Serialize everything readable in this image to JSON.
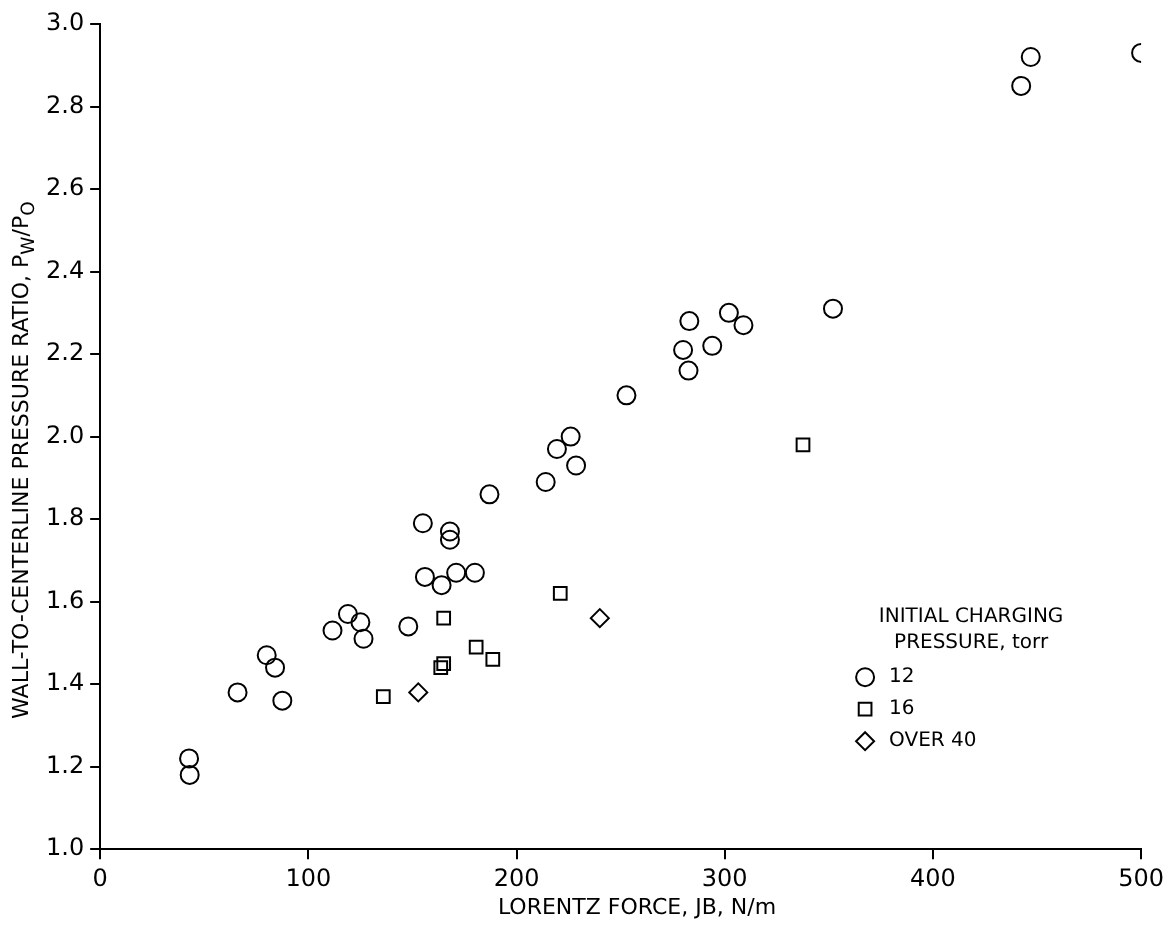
{
  "chart_data": {
    "type": "scatter",
    "xlabel": "LORENTZ FORCE, JB, N/m",
    "ylabel": "WALL-TO-CENTERLINE PRESSURE RATIO, P$_{W}$/P$_{O}$",
    "legend_title": "INITIAL CHARGING PRESSURE, torr",
    "legend": "bottom right",
    "grid": false,
    "xlim": [
      0,
      500
    ],
    "xticks": [
      0,
      100,
      200,
      300,
      400,
      500
    ],
    "ylim": [
      1,
      3
    ],
    "yticks": [
      {
        "value": 1,
        "label": "1.0"
      },
      1.2,
      1.4,
      1.6,
      1.8,
      {
        "value": 2,
        "label": "2.0"
      },
      2.2,
      2.4,
      2.6,
      2.8,
      {
        "value": 3,
        "label": "3.0"
      }
    ],
    "series": [
      {
        "name": "12",
        "color": "#000000",
        "marker": "circle",
        "x": [
          42.7,
          43,
          66,
          80,
          84,
          87.5,
          111.6,
          119,
          125,
          126.5,
          148,
          155,
          156,
          164,
          168,
          168,
          171,
          180,
          187,
          214,
          219.4,
          226,
          228.6,
          252.8,
          280,
          282.6,
          283,
          294,
          302,
          309,
          352,
          442.4,
          447,
          500
        ],
        "values": [
          1.22,
          1.18,
          1.38,
          1.47,
          1.44,
          1.36,
          1.53,
          1.57,
          1.55,
          1.51,
          1.54,
          1.79,
          1.66,
          1.64,
          1.77,
          1.75,
          1.67,
          1.67,
          1.86,
          1.89,
          1.97,
          2.0,
          1.93,
          2.1,
          2.21,
          2.16,
          2.28,
          2.22,
          2.3,
          2.27,
          2.31,
          2.85,
          2.92,
          2.93
        ]
      },
      {
        "name": "16",
        "color": "#000000",
        "marker": "square",
        "x": [
          136,
          163.6,
          165,
          165,
          180.6,
          188.6,
          221,
          337.6
        ],
        "values": [
          1.37,
          1.44,
          1.45,
          1.56,
          1.49,
          1.46,
          1.62,
          1.98
        ]
      },
      {
        "name": "OVER 40",
        "color": "#000000",
        "marker": "diamond",
        "x": [
          152.8,
          240
        ],
        "values": [
          1.38,
          1.56
        ]
      }
    ]
  }
}
